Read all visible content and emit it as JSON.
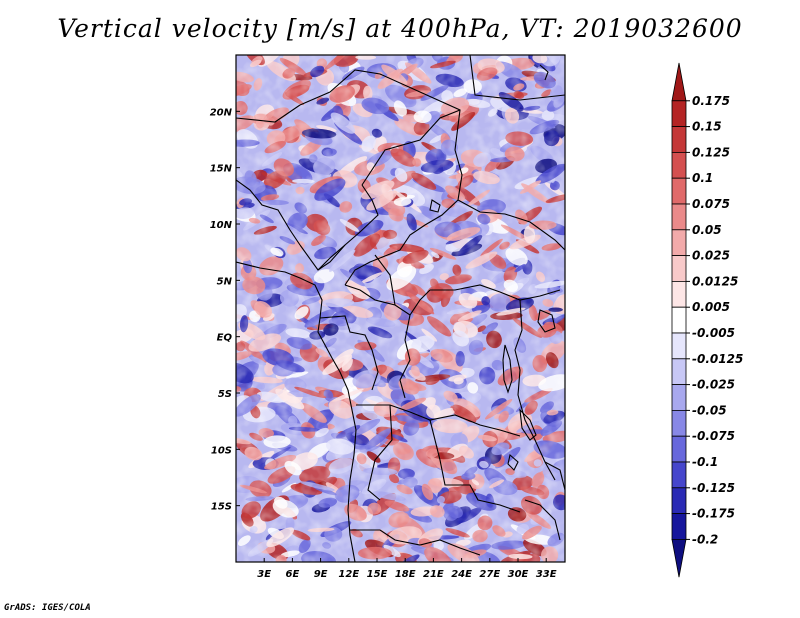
{
  "title": "Vertical velocity [m/s] at 400hPa, VT: 2019032600",
  "credit": "GrADS: IGES/COLA",
  "map": {
    "region": "Central Africa",
    "lon_ticks": [
      "3E",
      "6E",
      "9E",
      "12E",
      "15E",
      "18E",
      "21E",
      "24E",
      "27E",
      "30E",
      "33E"
    ],
    "lat_ticks": [
      "20N",
      "15N",
      "10N",
      "5N",
      "EQ",
      "5S",
      "10S",
      "15S"
    ],
    "lon_range": [
      0,
      35
    ],
    "lat_range": [
      -20,
      25
    ]
  },
  "colorbar": {
    "labels": [
      "0.175",
      "0.15",
      "0.125",
      "0.1",
      "0.075",
      "0.05",
      "0.025",
      "0.0125",
      "0.005",
      "-0.005",
      "-0.0125",
      "-0.025",
      "-0.05",
      "-0.075",
      "-0.1",
      "-0.125",
      "-0.175",
      "-0.2"
    ],
    "colors": [
      "#a01818",
      "#b42424",
      "#c43838",
      "#d45050",
      "#e06a6a",
      "#ea8a8a",
      "#f2aaaa",
      "#f8caca",
      "#fde6e6",
      "#ffffff",
      "#e6e6fc",
      "#c8c8f6",
      "#a8a8ee",
      "#8888e6",
      "#6868dc",
      "#4646cc",
      "#2a2ab4",
      "#16169c",
      "#0e0e80"
    ]
  },
  "colors": {
    "positive": "#d84a4a",
    "negative": "#6464e0",
    "neutral": "#ffffff"
  }
}
